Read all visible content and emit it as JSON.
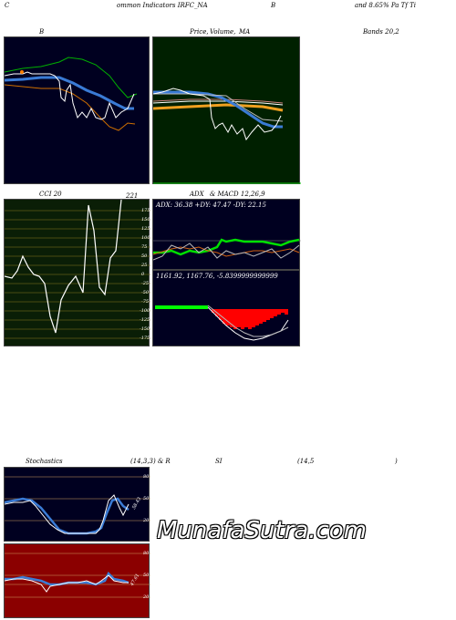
{
  "header": {
    "left_c": "C",
    "title": "ommon  Indicators IRFC_NA",
    "mid_b": "B",
    "right": "and 8.65% Pa  Tf  Ti"
  },
  "bollinger": {
    "label": "B"
  },
  "price_ma": {
    "label_a": "Price,",
    "label_b": "Volume,",
    "label_c": "MA"
  },
  "bands": {
    "label": "Bands 20,2"
  },
  "cci": {
    "label": "CCI 20",
    "value": "221",
    "ticks": [
      "175",
      "150",
      "125",
      "100",
      "75",
      "50",
      "25",
      "0",
      "-25",
      "-50",
      "-75",
      "-100",
      "-125",
      "-150",
      "-175"
    ]
  },
  "adx": {
    "label_a": "ADX",
    "label_b": "& MACD 12,26,9",
    "readout": "ADX: 36.38  +DY: 47.47 -DY: 22.15"
  },
  "macd": {
    "readout": "1161.92,  1167.76,  -5.8399999999999"
  },
  "stoch": {
    "label_a": "Stochastics",
    "label_b": "(14,3,3) & R",
    "label_c": "SI",
    "label_d": "(14,5",
    "label_e": ")",
    "ticks": [
      "80",
      "50",
      "20"
    ],
    "value": "58.43"
  },
  "rsi": {
    "ticks": [
      "80",
      "50",
      "20"
    ],
    "value": "47.61"
  },
  "watermark": "MunafaSutra.com",
  "colors": {
    "navy": "#000020",
    "green_dark": "#002000",
    "olive": "#0a1e06",
    "red_panel": "#8b0000"
  }
}
